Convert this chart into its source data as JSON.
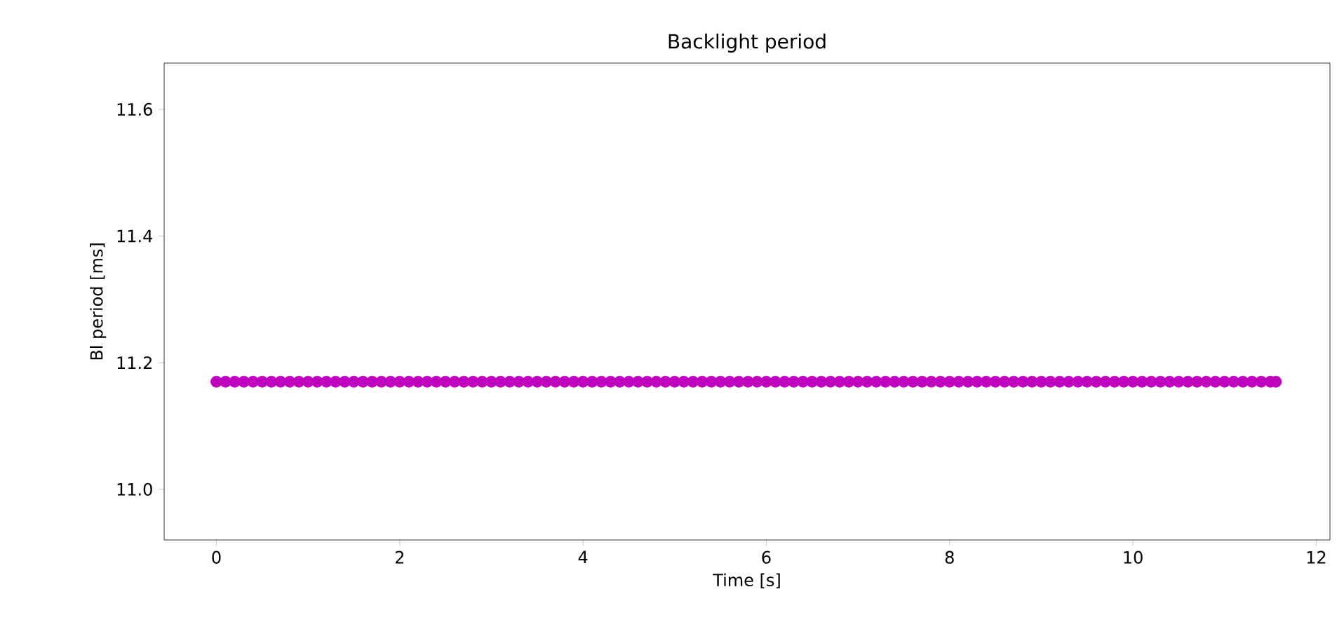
{
  "chart_data": {
    "type": "scatter",
    "title": "Backlight period",
    "xlabel": "Time [s]",
    "ylabel": "Bl period [ms]",
    "xlim": [
      -0.57,
      12.15
    ],
    "ylim": [
      10.92,
      11.673
    ],
    "xticks": [
      0,
      2,
      4,
      6,
      8,
      10,
      12
    ],
    "yticks": [
      {
        "value": 11.0,
        "label": "11.0"
      },
      {
        "value": 11.2,
        "label": "11.2"
      },
      {
        "value": 11.4,
        "label": "11.4"
      },
      {
        "value": 11.6,
        "label": "11.6"
      }
    ],
    "marker": "circle",
    "series": [
      {
        "color": "#bf00bf",
        "x": [
          0,
          0.1,
          0.2,
          0.3,
          0.4,
          0.5,
          0.6,
          0.7,
          0.8,
          0.9,
          1.0,
          1.1,
          1.2,
          1.3,
          1.4,
          1.5,
          1.6,
          1.7,
          1.8,
          1.9,
          2.0,
          2.1,
          2.2,
          2.3,
          2.4,
          2.5,
          2.6,
          2.7,
          2.8,
          2.9,
          3.0,
          3.1,
          3.2,
          3.3,
          3.4,
          3.5,
          3.6,
          3.7,
          3.8,
          3.9,
          4.0,
          4.1,
          4.2,
          4.3,
          4.4,
          4.5,
          4.6,
          4.7,
          4.8,
          4.9,
          5.0,
          5.1,
          5.2,
          5.3,
          5.4,
          5.5,
          5.6,
          5.7,
          5.8,
          5.9,
          6.0,
          6.1,
          6.2,
          6.3,
          6.4,
          6.5,
          6.6,
          6.7,
          6.8,
          6.9,
          7.0,
          7.1,
          7.2,
          7.3,
          7.4,
          7.5,
          7.6,
          7.7,
          7.8,
          7.9,
          8.0,
          8.1,
          8.2,
          8.3,
          8.4,
          8.5,
          8.6,
          8.7,
          8.8,
          8.9,
          9.0,
          9.1,
          9.2,
          9.3,
          9.4,
          9.5,
          9.6,
          9.7,
          9.8,
          9.9,
          10.0,
          10.1,
          10.2,
          10.3,
          10.4,
          10.5,
          10.6,
          10.7,
          10.8,
          10.9,
          11.0,
          11.1,
          11.2,
          11.3,
          11.4,
          11.5,
          11.56
        ],
        "values": [
          11.17,
          11.17,
          11.17,
          11.17,
          11.17,
          11.17,
          11.17,
          11.17,
          11.17,
          11.17,
          11.17,
          11.17,
          11.17,
          11.17,
          11.17,
          11.17,
          11.17,
          11.17,
          11.17,
          11.17,
          11.17,
          11.17,
          11.17,
          11.17,
          11.17,
          11.17,
          11.17,
          11.17,
          11.17,
          11.17,
          11.17,
          11.17,
          11.17,
          11.17,
          11.17,
          11.17,
          11.17,
          11.17,
          11.17,
          11.17,
          11.17,
          11.17,
          11.17,
          11.17,
          11.17,
          11.17,
          11.17,
          11.17,
          11.17,
          11.17,
          11.17,
          11.17,
          11.17,
          11.17,
          11.17,
          11.17,
          11.17,
          11.17,
          11.17,
          11.17,
          11.17,
          11.17,
          11.17,
          11.17,
          11.17,
          11.17,
          11.17,
          11.17,
          11.17,
          11.17,
          11.17,
          11.17,
          11.17,
          11.17,
          11.17,
          11.17,
          11.17,
          11.17,
          11.17,
          11.17,
          11.17,
          11.17,
          11.17,
          11.17,
          11.17,
          11.17,
          11.17,
          11.17,
          11.17,
          11.17,
          11.17,
          11.17,
          11.17,
          11.17,
          11.17,
          11.17,
          11.17,
          11.17,
          11.17,
          11.17,
          11.17,
          11.17,
          11.17,
          11.17,
          11.17,
          11.17,
          11.17,
          11.17,
          11.17,
          11.17,
          11.17,
          11.17,
          11.17,
          11.17,
          11.17,
          11.17,
          11.17
        ]
      }
    ]
  }
}
